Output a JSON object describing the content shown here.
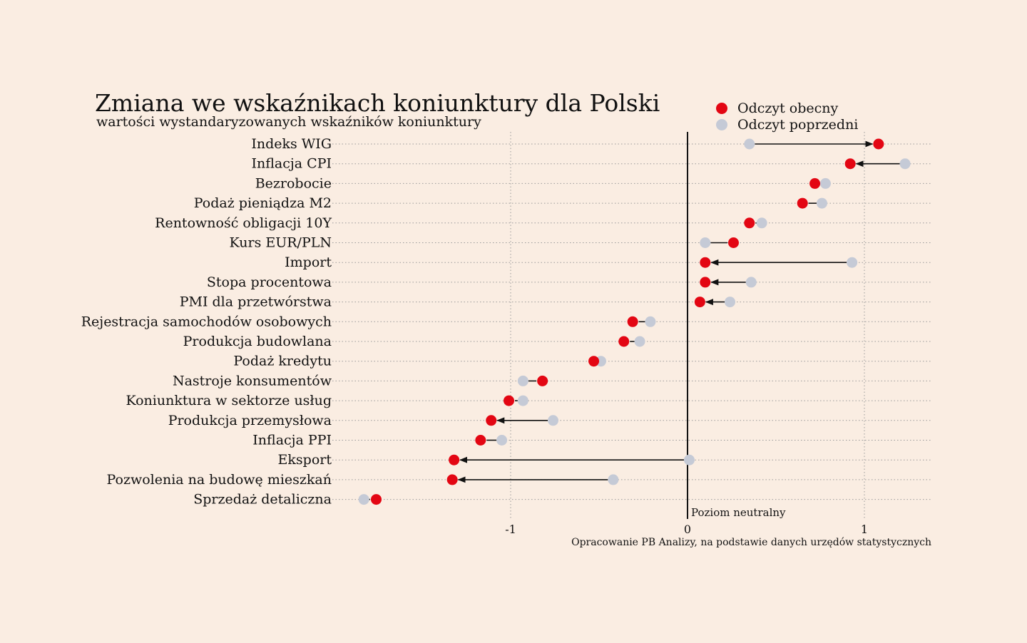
{
  "chart_data": {
    "type": "dumbbell",
    "title": "Zmiana we wskaźnikach koniunktury dla Polski",
    "subtitle": "wartości wystandaryzowanych wskaźników koniunktury",
    "xlabel": "",
    "ylabel": "",
    "xlim": [
      -2.0,
      1.37
    ],
    "x_ticks": [
      -1,
      0,
      1
    ],
    "x_tick_labels": [
      "-1",
      "0",
      "1"
    ],
    "grid": "dotted",
    "legend_position": "top-right",
    "legend": [
      {
        "label": "Odczyt obecny",
        "color": "#e30613"
      },
      {
        "label": "Odczyt poprzedni",
        "color": "#c5cad6"
      }
    ],
    "neutral_label": "Poziom neutralny",
    "source": "Opracowanie PB Analizy, na podstawie danych urzędów statystycznych",
    "categories": [
      "Indeks WIG",
      "Inflacja CPI",
      "Bezrobocie",
      "Podaż pieniądza M2",
      "Rentowność obligacji 10Y",
      "Kurs EUR/PLN",
      "Import",
      "Stopa procentowa",
      "PMI dla przetwórstwa",
      "Rejestracja samochodów osobowych",
      "Produkcja budowlana",
      "Podaż kredytu",
      "Nastroje konsumentów",
      "Koniunktura w sektorze usług",
      "Produkcja przemysłowa",
      "Inflacja PPI",
      "Eksport",
      "Pozwolenia na budowę mieszkań",
      "Sprzedaż detaliczna"
    ],
    "series": [
      {
        "name": "Odczyt obecny",
        "values": [
          1.08,
          0.92,
          0.72,
          0.65,
          0.35,
          0.26,
          0.1,
          0.1,
          0.07,
          -0.31,
          -0.36,
          -0.53,
          -0.82,
          -1.01,
          -1.11,
          -1.17,
          -1.32,
          -1.33,
          -1.76
        ]
      },
      {
        "name": "Odczyt poprzedni",
        "values": [
          0.35,
          1.23,
          0.78,
          0.76,
          0.42,
          0.1,
          0.93,
          0.36,
          0.24,
          -0.21,
          -0.27,
          -0.49,
          -0.93,
          -0.93,
          -0.76,
          -1.05,
          0.01,
          -0.42,
          -1.83
        ]
      }
    ],
    "colors": {
      "background": "#faede2",
      "current": "#e30613",
      "previous": "#c5cad6",
      "line": "#111111",
      "grid": "#9a9a9a"
    }
  }
}
